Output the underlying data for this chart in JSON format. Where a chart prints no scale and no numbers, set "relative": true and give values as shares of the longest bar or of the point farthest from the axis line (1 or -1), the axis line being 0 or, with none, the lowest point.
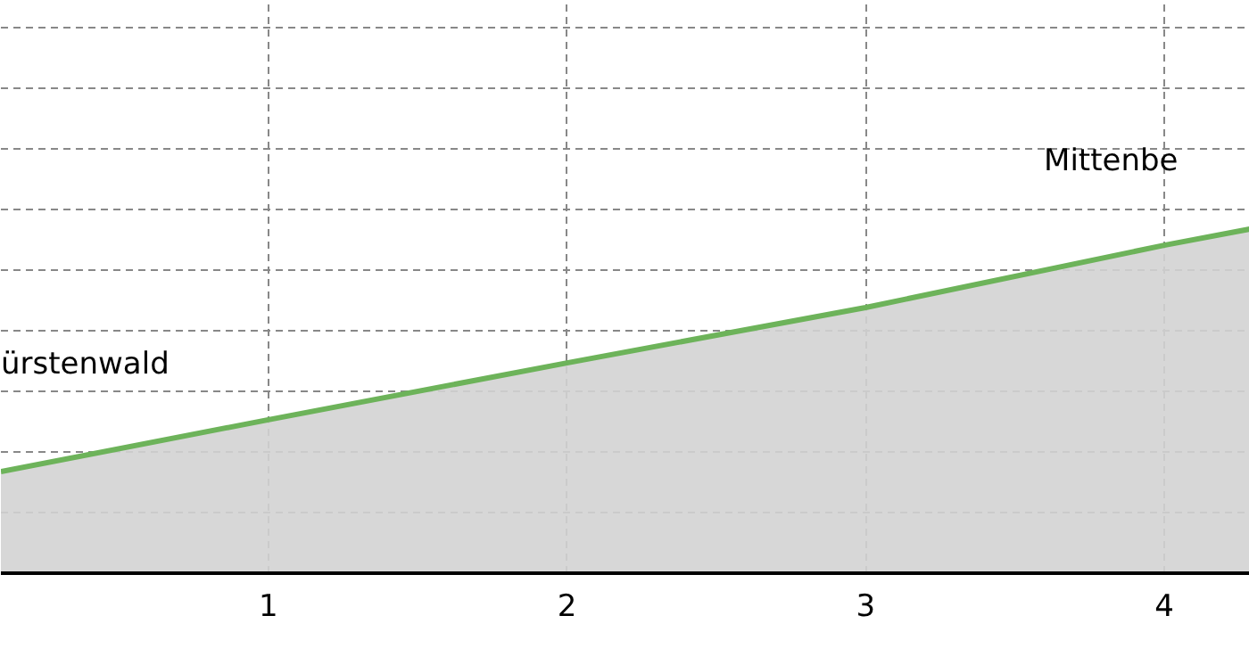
{
  "chart_data": {
    "type": "area",
    "relative": true,
    "x": [
      0.104,
      1,
      2,
      3,
      4,
      4.287
    ],
    "series": [
      {
        "color": "#6db35a",
        "values": [
          0.295,
          0.446,
          0.611,
          0.772,
          0.953,
          1
        ]
      }
    ],
    "xlim": [
      0.104,
      4.287
    ],
    "xticks": [
      1,
      2,
      3,
      4
    ],
    "tick_labels": "x",
    "grid": true,
    "annotations": [
      "ürstenwald",
      "Mittenbe"
    ]
  }
}
